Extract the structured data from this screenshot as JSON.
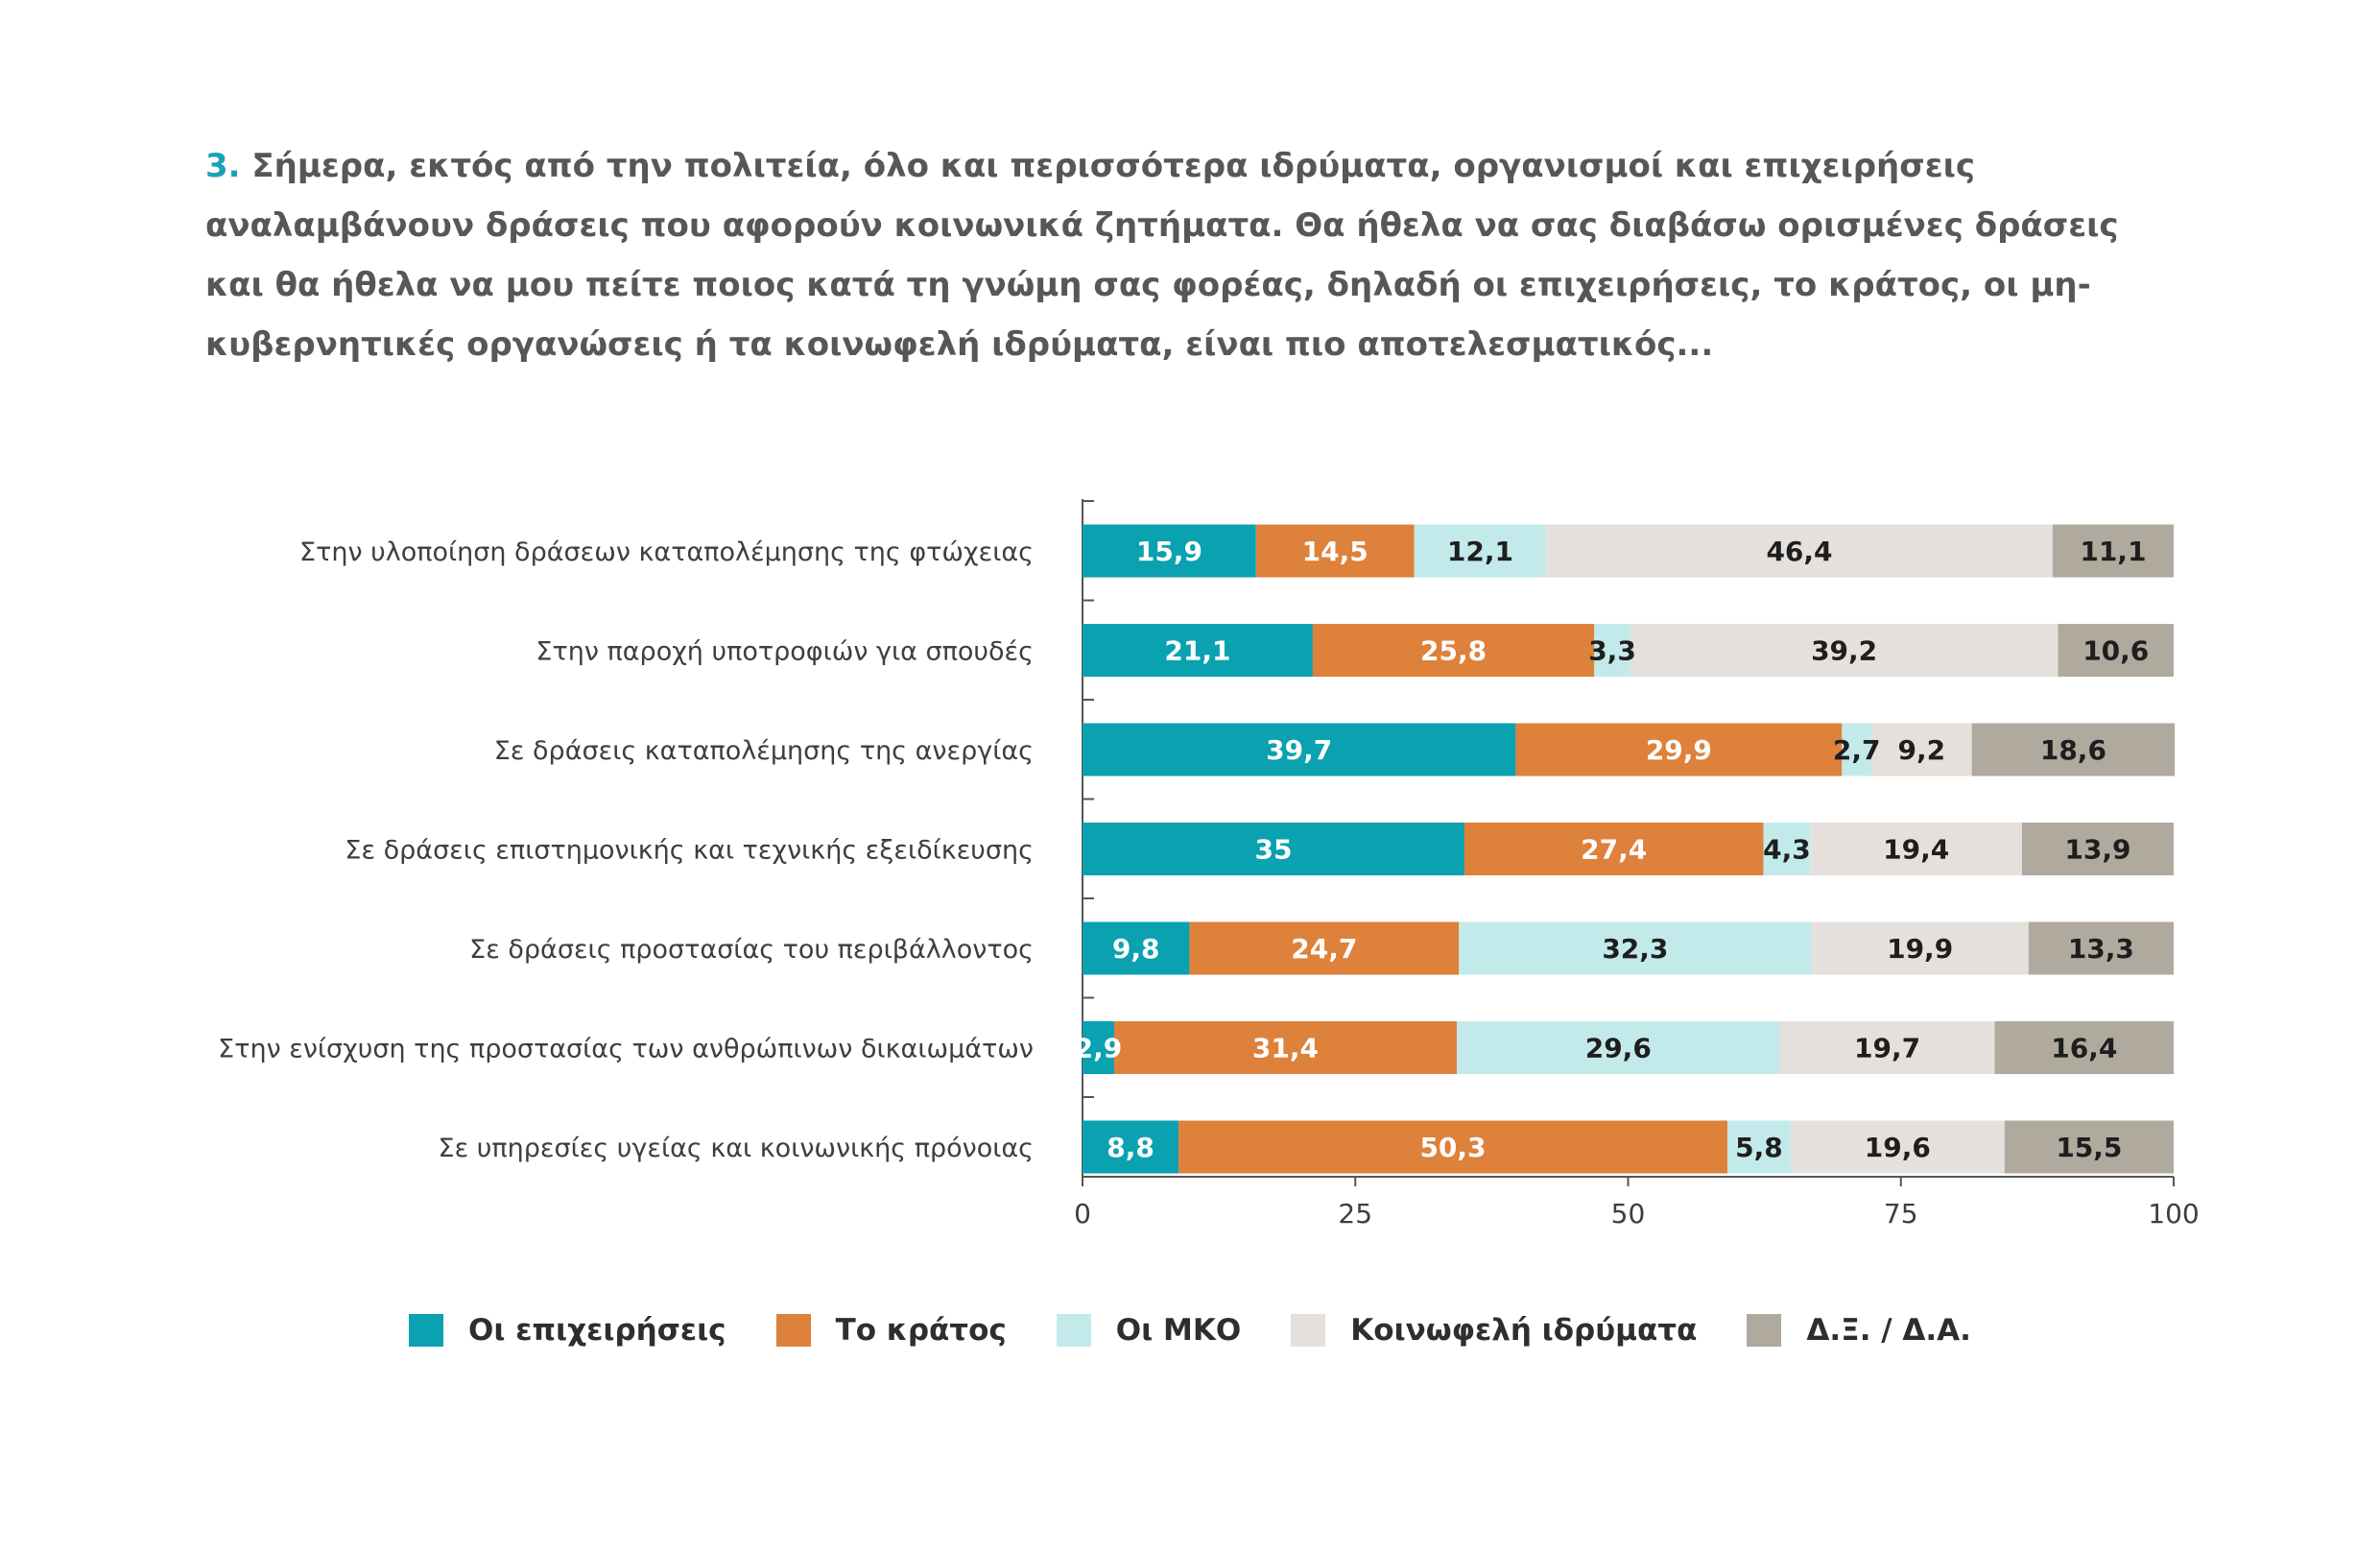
{
  "question": {
    "number": "3.",
    "text": "Σήμερα, εκτός από την πολιτεία, όλο και περισσότερα ιδρύματα, οργανισμοί και επιχειρήσεις αναλαμβάνουν δράσεις που αφορούν κοινωνικά ζητήματα. Θα ήθελα να σας διαβάσω ορισμένες δράσεις και θα ήθελα να μου πείτε ποιος κατά τη γνώμη σας φορέας, δηλαδή οι επιχειρήσεις, το κράτος, οι μη-κυβερνητικές οργανώσεις ή τα κοινωφελή ιδρύματα, είναι πιο αποτελεσματικός..."
  },
  "chart_data": {
    "type": "bar",
    "orientation": "horizontal",
    "stacked": true,
    "title": "",
    "xlabel": "",
    "ylabel": "",
    "xlim": [
      0,
      100
    ],
    "xticks": [
      "0",
      "25",
      "50",
      "75",
      "100"
    ],
    "grid": false,
    "legend_position": "bottom",
    "categories": [
      "Στην υλοποίηση δράσεων καταπολέμησης της φτώχειας",
      "Στην παροχή υποτροφιών για σπουδές",
      "Σε δράσεις καταπολέμησης της ανεργίας",
      "Σε δράσεις επιστημονικής και τεχνικής εξειδίκευσης",
      "Σε δράσεις προστασίας του περιβάλλοντος",
      "Στην ενίσχυση της προστασίας των ανθρώπινων δικαιωμάτων",
      "Σε υπηρεσίες υγείας και κοινωνικής πρόνοιας"
    ],
    "series": [
      {
        "name": "Οι επιχειρήσεις",
        "color": "#0aa1b0",
        "label_color": "#ffffff",
        "values": [
          15.9,
          21.1,
          39.7,
          35,
          9.8,
          2.9,
          8.8
        ],
        "labels": [
          "15,9",
          "21,1",
          "39,7",
          "35",
          "9,8",
          "2,9",
          "8,8"
        ]
      },
      {
        "name": "Το κράτος",
        "color": "#dd813b",
        "label_color": "#ffffff",
        "values": [
          14.5,
          25.8,
          29.9,
          27.4,
          24.7,
          31.4,
          50.3
        ],
        "labels": [
          "14,5",
          "25,8",
          "29,9",
          "27,4",
          "24,7",
          "31,4",
          "50,3"
        ]
      },
      {
        "name": "Οι ΜΚΟ",
        "color": "#c3eaea",
        "label_color": "#1e1e1e",
        "values": [
          12.1,
          3.3,
          2.7,
          4.3,
          32.3,
          29.6,
          5.8
        ],
        "labels": [
          "12,1",
          "3,3",
          "2,7",
          "4,3",
          "32,3",
          "29,6",
          "5,8"
        ]
      },
      {
        "name": "Κοινωφελή ιδρύματα",
        "color": "#e6e0dc",
        "label_color": "#1e1e1e",
        "values": [
          46.4,
          39.2,
          9.2,
          19.4,
          19.9,
          19.7,
          19.6
        ],
        "labels": [
          "46,4",
          "39,2",
          "9,2",
          "19,4",
          "19,9",
          "19,7",
          "19,6"
        ]
      },
      {
        "name": "Δ.Ξ. / Δ.Α.",
        "color": "#b0a99e",
        "label_color": "#1e1e1e",
        "values": [
          11.1,
          10.6,
          18.6,
          13.9,
          13.3,
          16.4,
          15.5
        ],
        "labels": [
          "11,1",
          "10,6",
          "18,6",
          "13,9",
          "13,3",
          "16,4",
          "15,5"
        ]
      }
    ]
  }
}
